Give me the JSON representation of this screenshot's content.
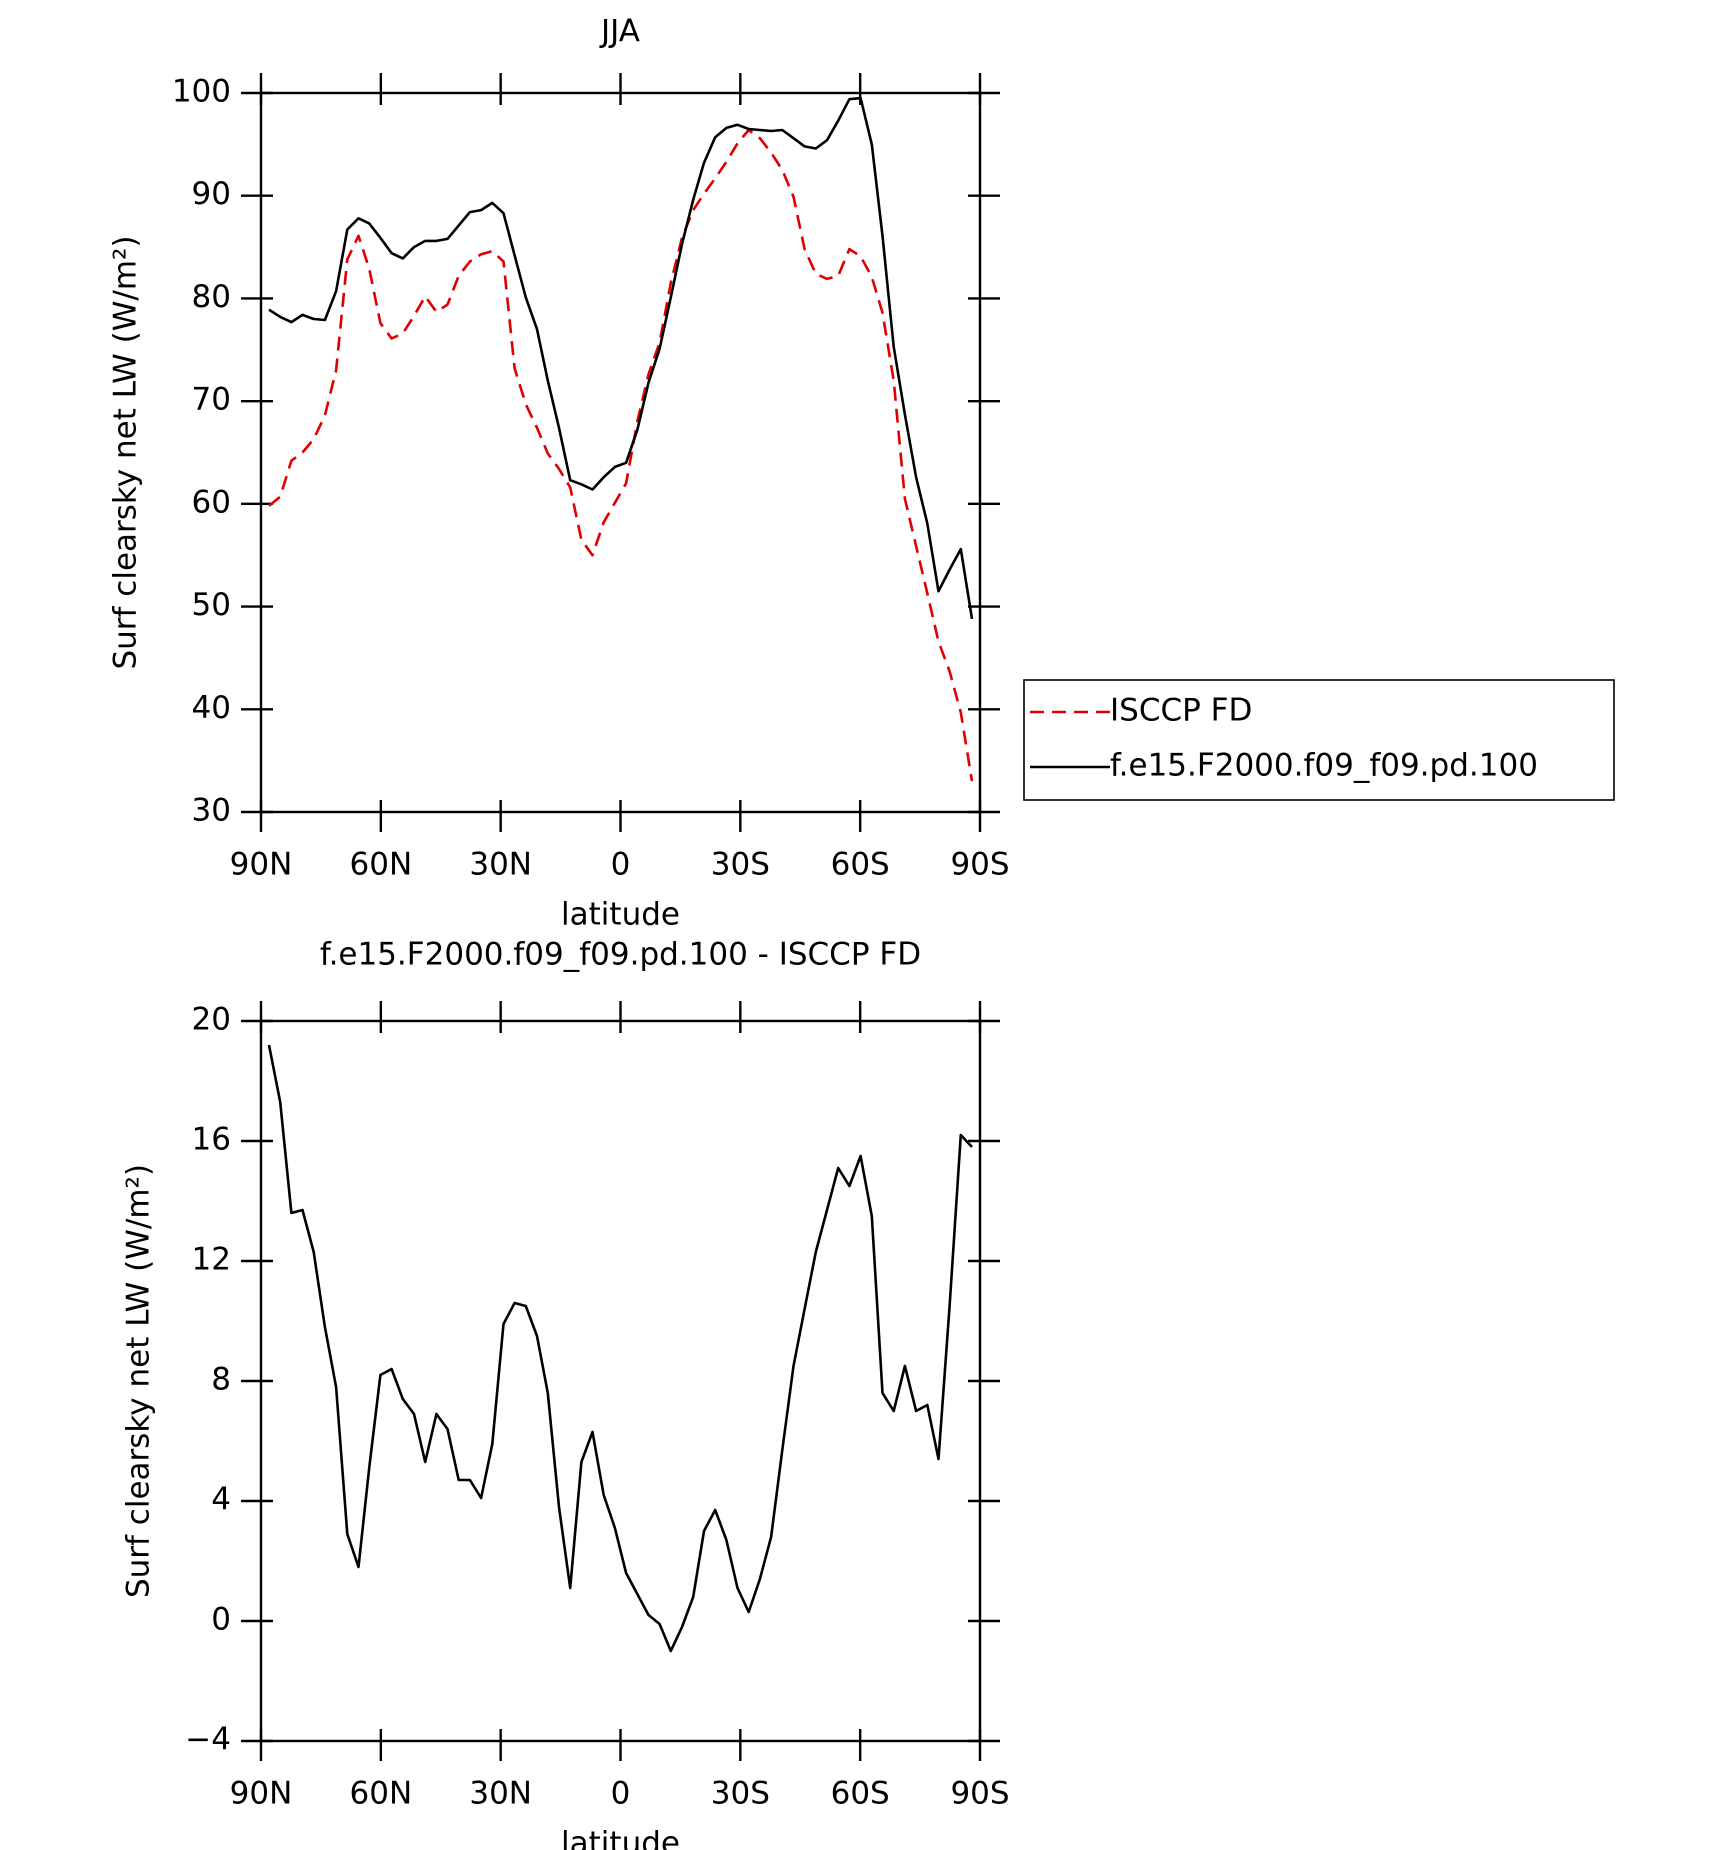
{
  "chart_data": [
    {
      "type": "line",
      "title": "JJA",
      "xlabel": "latitude",
      "ylabel": "Surf clearsky net LW (W/m²)",
      "x": [
        88.0,
        85.2,
        82.4,
        79.6,
        76.8,
        74.0,
        71.2,
        68.4,
        65.6,
        62.9,
        60.1,
        57.3,
        54.5,
        51.7,
        48.9,
        46.1,
        43.3,
        40.5,
        37.7,
        34.9,
        32.1,
        29.3,
        26.5,
        23.7,
        20.9,
        18.2,
        15.4,
        12.6,
        9.8,
        7.0,
        4.2,
        1.4,
        -1.4,
        -4.2,
        -7.0,
        -9.8,
        -12.6,
        -15.4,
        -18.2,
        -20.9,
        -23.7,
        -26.5,
        -29.3,
        -32.1,
        -34.9,
        -37.7,
        -40.5,
        -43.3,
        -46.1,
        -48.9,
        -51.7,
        -54.5,
        -57.3,
        -60.1,
        -62.9,
        -65.6,
        -68.4,
        -71.2,
        -74.0,
        -76.8,
        -79.6,
        -82.4,
        -85.2,
        -88.0
      ],
      "series": [
        {
          "name": "ISCCP FD",
          "color": "#e00000",
          "dashed": true,
          "values": [
            59.8,
            60.7,
            64.2,
            65.0,
            66.3,
            68.6,
            73.0,
            83.8,
            86.1,
            82.9,
            77.6,
            76.1,
            76.6,
            78.3,
            80.2,
            78.7,
            79.4,
            82.2,
            83.6,
            84.3,
            84.6,
            83.6,
            73.2,
            69.7,
            67.4,
            64.9,
            63.4,
            61.6,
            56.5,
            55.0,
            58.2,
            60.1,
            62.0,
            68.0,
            72.6,
            75.7,
            81.5,
            85.9,
            88.6,
            90.2,
            91.7,
            93.3,
            95.1,
            96.4,
            95.6,
            94.2,
            92.5,
            89.9,
            84.8,
            82.4,
            81.9,
            82.2,
            84.8,
            84.1,
            82.1,
            78.6,
            72.0,
            60.5,
            55.9,
            51.3,
            46.6,
            43.7,
            39.7,
            33.0
          ]
        },
        {
          "name": "f.e15.F2000.f09_f09.pd.100",
          "color": "#000000",
          "dashed": false,
          "values": [
            78.9,
            78.2,
            77.7,
            78.4,
            78.0,
            77.9,
            80.7,
            86.7,
            87.8,
            87.3,
            85.9,
            84.4,
            83.9,
            85.0,
            85.6,
            85.6,
            85.8,
            87.1,
            88.4,
            88.6,
            89.3,
            88.3,
            84.2,
            80.1,
            77.0,
            72.0,
            67.4,
            62.3,
            61.9,
            61.4,
            62.6,
            63.6,
            64.0,
            67.2,
            71.8,
            75.1,
            80.1,
            85.3,
            89.6,
            93.2,
            95.7,
            96.6,
            96.9,
            96.5,
            96.4,
            96.3,
            96.4,
            95.6,
            94.8,
            94.6,
            95.4,
            97.3,
            99.4,
            99.5,
            95.0,
            86.1,
            75.3,
            68.7,
            62.6,
            58.1,
            51.5,
            53.6,
            55.6,
            48.8
          ]
        }
      ],
      "xlim": [
        90,
        -90
      ],
      "xticks": [
        {
          "value": 90,
          "label": "90N"
        },
        {
          "value": 60,
          "label": "60N"
        },
        {
          "value": 30,
          "label": "30N"
        },
        0,
        {
          "value": -30,
          "label": "30S"
        },
        {
          "value": -60,
          "label": "60S"
        },
        {
          "value": -90,
          "label": "90S"
        }
      ],
      "ylim": [
        30,
        100
      ],
      "yticks": [
        30,
        40,
        50,
        60,
        70,
        80,
        90,
        100
      ],
      "legend": "right"
    },
    {
      "type": "line",
      "title": "f.e15.F2000.f09_f09.pd.100 - ISCCP FD",
      "xlabel": "latitude",
      "ylabel": "Surf clearsky net LW (W/m²)",
      "x": [
        88.0,
        85.2,
        82.4,
        79.6,
        76.8,
        74.0,
        71.2,
        68.4,
        65.6,
        62.9,
        60.1,
        57.3,
        54.5,
        51.7,
        48.9,
        46.1,
        43.3,
        40.5,
        37.7,
        34.9,
        32.1,
        29.3,
        26.5,
        23.7,
        20.9,
        18.2,
        15.4,
        12.6,
        9.8,
        7.0,
        4.2,
        1.4,
        -1.4,
        -4.2,
        -7.0,
        -9.8,
        -12.6,
        -15.4,
        -18.2,
        -20.9,
        -23.7,
        -26.5,
        -29.3,
        -32.1,
        -34.9,
        -37.7,
        -40.5,
        -43.3,
        -46.1,
        -48.9,
        -51.7,
        -54.5,
        -57.3,
        -60.1,
        -62.9,
        -65.6,
        -68.4,
        -71.2,
        -74.0,
        -76.8,
        -79.6,
        -82.4,
        -85.2,
        -88.0
      ],
      "series": [
        {
          "color": "#000000",
          "dashed": false,
          "values": [
            19.2,
            17.3,
            13.6,
            13.7,
            12.3,
            9.8,
            7.8,
            2.9,
            1.8,
            5.1,
            8.2,
            8.4,
            7.4,
            6.9,
            5.3,
            6.9,
            6.4,
            4.7,
            4.7,
            4.1,
            5.9,
            9.9,
            10.6,
            10.5,
            9.5,
            7.6,
            3.8,
            1.1,
            5.3,
            6.3,
            4.2,
            3.1,
            1.6,
            0.9,
            0.2,
            -0.1,
            -1.0,
            -0.2,
            0.8,
            3.0,
            3.7,
            2.7,
            1.1,
            0.3,
            1.4,
            2.8,
            5.7,
            8.5,
            10.4,
            12.3,
            13.7,
            15.1,
            14.5,
            15.5,
            13.5,
            7.6,
            7.0,
            8.5,
            7.0,
            7.2,
            5.4,
            10.5,
            16.2,
            15.8
          ]
        }
      ],
      "xlim": [
        90,
        -90
      ],
      "xticks": [
        {
          "value": 90,
          "label": "90N"
        },
        {
          "value": 60,
          "label": "60N"
        },
        {
          "value": 30,
          "label": "30N"
        },
        0,
        {
          "value": -30,
          "label": "30S"
        },
        {
          "value": -60,
          "label": "60S"
        },
        {
          "value": -90,
          "label": "90S"
        }
      ],
      "ylim": [
        -4,
        20
      ],
      "yticks": [
        {
          "value": -4,
          "label": "−4"
        },
        0,
        4,
        8,
        12,
        16,
        20
      ]
    }
  ]
}
